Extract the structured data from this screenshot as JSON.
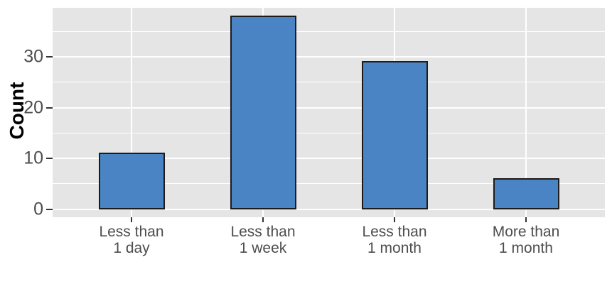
{
  "chart_data": {
    "type": "bar",
    "title": "",
    "ylabel": "Count",
    "xlabel": "",
    "categories": [
      {
        "lines": [
          "Less than",
          "1 day"
        ]
      },
      {
        "lines": [
          "Less than",
          "1 week"
        ]
      },
      {
        "lines": [
          "Less than",
          "1 month"
        ]
      },
      {
        "lines": [
          "More than",
          "1 month"
        ]
      }
    ],
    "values": [
      11,
      38,
      29,
      6
    ],
    "yticks": [
      0,
      10,
      20,
      30
    ],
    "yticks_minor": [
      5,
      15,
      25,
      35
    ],
    "ylim": [
      -1.6,
      39.7
    ],
    "bar_relative_width": 0.5,
    "grid": "horizontal major+minor gridlines, vertical major gridline at each category center",
    "legend": "none",
    "colors": {
      "bar_fill": "#4B84C4",
      "bar_border": "#1C1C1C",
      "panel_background": "#E5E5E5",
      "gridline": "#FFFFFF",
      "tick_label": "#4D4D4D",
      "axis_title": "#000000",
      "tick_mark": "#333333"
    }
  }
}
